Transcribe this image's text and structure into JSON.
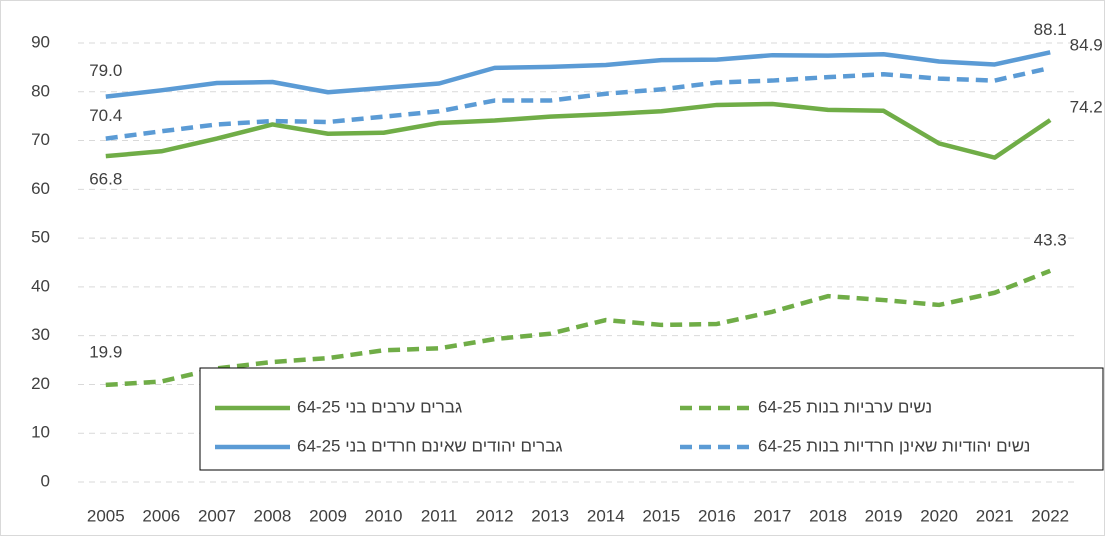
{
  "chart_data": {
    "type": "line",
    "x": [
      "2005",
      "2006",
      "2007",
      "2008",
      "2009",
      "2010",
      "2011",
      "2012",
      "2013",
      "2014",
      "2015",
      "2016",
      "2017",
      "2018",
      "2019",
      "2020",
      "2021",
      "2022"
    ],
    "ylim": [
      0,
      90
    ],
    "yticks": [
      0,
      10,
      20,
      30,
      40,
      50,
      60,
      70,
      80,
      90
    ],
    "grid": true,
    "series": [
      {
        "name": "גברים ערבים בני 64-25",
        "color": "#70ad47",
        "dashed": false,
        "values": [
          66.8,
          67.8,
          70.4,
          73.3,
          71.4,
          71.6,
          73.6,
          74.1,
          74.9,
          75.4,
          76.0,
          77.3,
          77.5,
          76.3,
          76.1,
          69.4,
          66.5,
          74.2
        ],
        "value_labels": [
          "66.8",
          null,
          null,
          null,
          null,
          null,
          null,
          null,
          null,
          null,
          null,
          null,
          null,
          null,
          null,
          null,
          null,
          "74.2"
        ]
      },
      {
        "name": "נשים ערביות בנות 64-25",
        "color": "#70ad47",
        "dashed": true,
        "values": [
          19.9,
          20.6,
          23.3,
          24.6,
          25.4,
          27.0,
          27.4,
          29.3,
          30.4,
          33.2,
          32.2,
          32.4,
          34.9,
          38.1,
          37.3,
          36.3,
          38.8,
          43.3
        ],
        "value_labels": [
          "19.9",
          null,
          null,
          null,
          null,
          null,
          null,
          null,
          null,
          null,
          null,
          null,
          null,
          null,
          null,
          null,
          null,
          "43.3"
        ]
      },
      {
        "name": "גברים יהודים שאינם חרדים בני 64-25",
        "color": "#5b9bd5",
        "dashed": false,
        "values": [
          79.0,
          80.3,
          81.8,
          82.0,
          79.9,
          80.8,
          81.7,
          84.9,
          85.1,
          85.5,
          86.5,
          86.6,
          87.5,
          87.4,
          87.7,
          86.2,
          85.6,
          88.1
        ],
        "value_labels": [
          "79.0",
          null,
          null,
          null,
          null,
          null,
          null,
          null,
          null,
          null,
          null,
          null,
          null,
          null,
          null,
          null,
          null,
          "88.1"
        ]
      },
      {
        "name": "נשים יהודיות שאינן חרדיות בנות 64-25",
        "color": "#5b9bd5",
        "dashed": true,
        "values": [
          70.4,
          71.9,
          73.3,
          74.0,
          73.8,
          74.9,
          76.0,
          78.2,
          78.2,
          79.6,
          80.5,
          81.9,
          82.3,
          83.0,
          83.6,
          82.7,
          82.3,
          84.9
        ],
        "value_labels": [
          "70.4",
          null,
          null,
          null,
          null,
          null,
          null,
          null,
          null,
          null,
          null,
          null,
          null,
          null,
          null,
          null,
          null,
          "84.9"
        ]
      }
    ]
  }
}
